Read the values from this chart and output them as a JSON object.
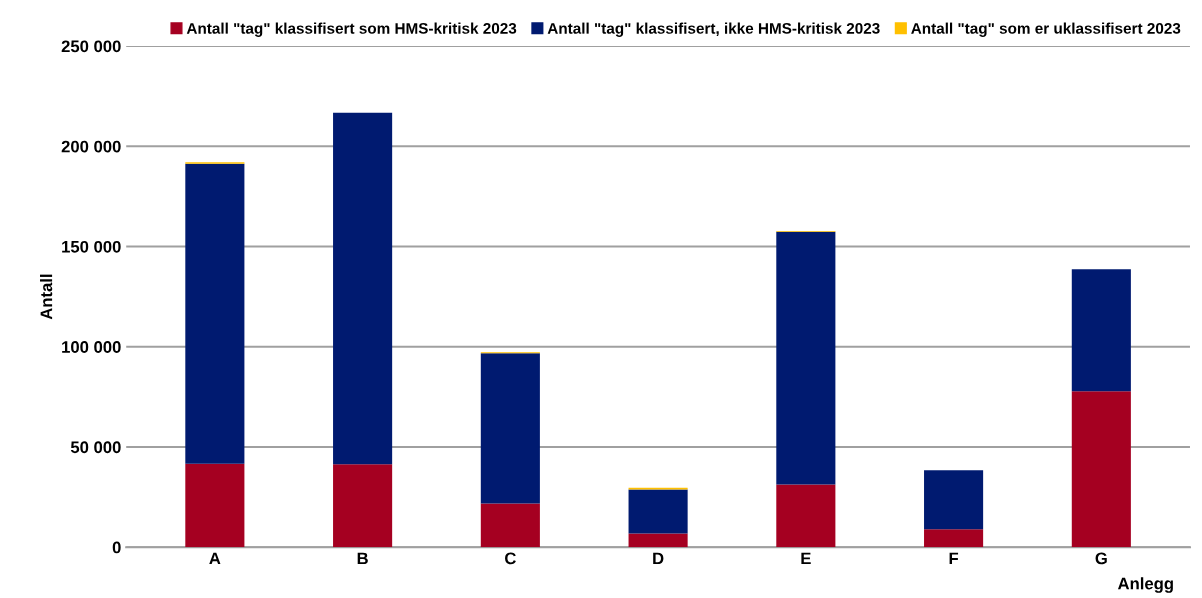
{
  "chart_data": {
    "type": "bar",
    "stacked": true,
    "xlabel": "Anlegg",
    "ylabel": "Antall",
    "categories": [
      "A",
      "B",
      "C",
      "D",
      "E",
      "F",
      "G"
    ],
    "series": [
      {
        "name": "Antall \"tag\" klassifisert som HMS-kritisk 2023",
        "color": "#a50021",
        "values": [
          41600,
          41400,
          21800,
          6800,
          31300,
          9000,
          77800
        ]
      },
      {
        "name": "Antall \"tag\" klassifisert, ikke HMS-kritisk 2023",
        "color": "#001a70",
        "values": [
          149700,
          175300,
          75000,
          22000,
          126000,
          29400,
          60800
        ]
      },
      {
        "name": "Antall \"tag\" som er uklassifisert 2023",
        "color": "#ffc000",
        "values": [
          700,
          0,
          400,
          800,
          400,
          0,
          0
        ]
      }
    ],
    "ylim": [
      0,
      250000
    ],
    "yticks": [
      {
        "value": 0,
        "label": "0"
      },
      {
        "value": 50000,
        "label": "50 000"
      },
      {
        "value": 100000,
        "label": "100 000"
      },
      {
        "value": 150000,
        "label": "150 000"
      },
      {
        "value": 200000,
        "label": "200 000"
      },
      {
        "value": 250000,
        "label": "250 000"
      }
    ],
    "grid": "y",
    "legend": "top"
  }
}
